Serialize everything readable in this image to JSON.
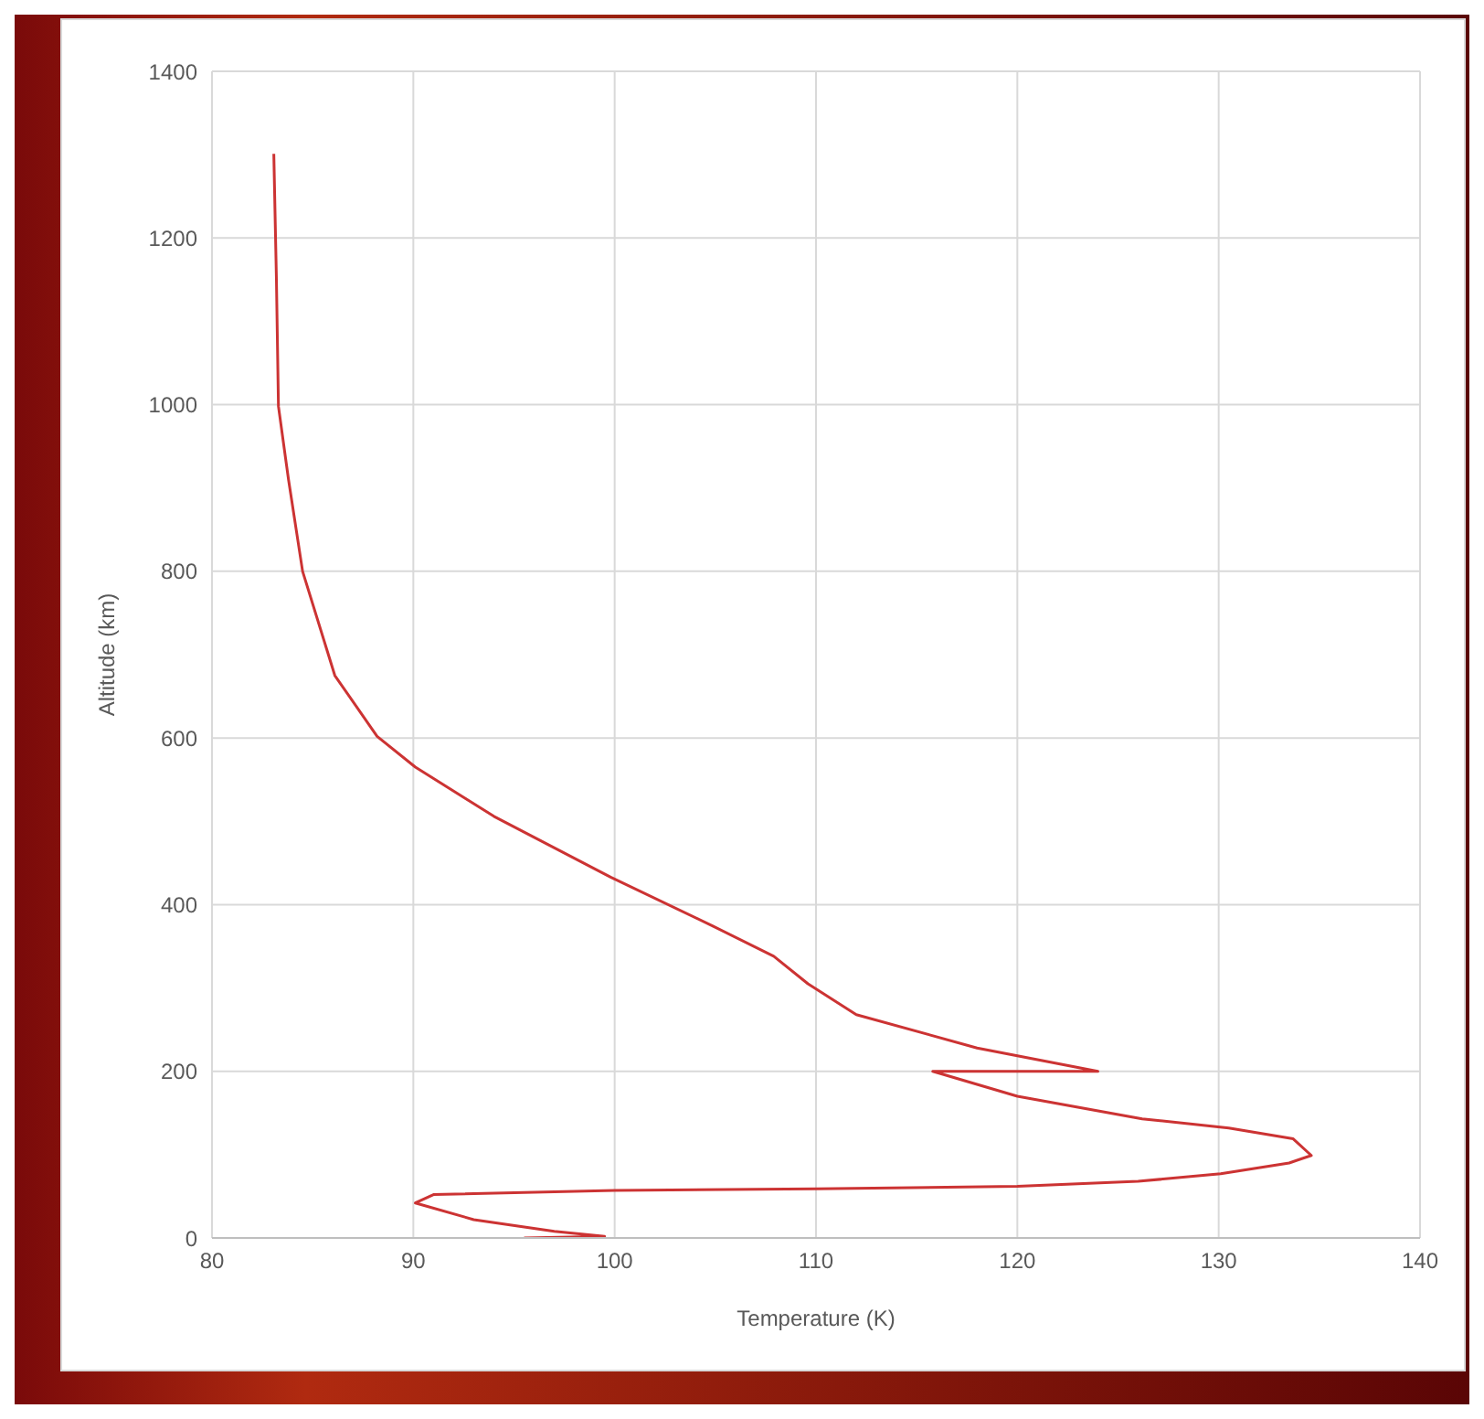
{
  "chart_data": {
    "type": "line",
    "xlabel": "Temperature (K)",
    "ylabel": "Altitude (km)",
    "xlim": [
      80,
      140
    ],
    "xticks": [
      80,
      90,
      100,
      110,
      120,
      130,
      140
    ],
    "ylim": [
      0,
      1400
    ],
    "yticks": [
      0,
      200,
      400,
      600,
      800,
      1000,
      1200,
      1400
    ],
    "grid": true,
    "marker": "none",
    "line_style": "solid",
    "legend": false,
    "series": [
      {
        "color": "#cc3333",
        "x": [
          95.5,
          99.5,
          97,
          93,
          90.1,
          91,
          100,
          110,
          120,
          126,
          130.1,
          133.5,
          134.6,
          133.7,
          130.5,
          126.2,
          120,
          115.8,
          124,
          118,
          112,
          109.6,
          107.9,
          104.9,
          99.8,
          94,
          90.1,
          88.2,
          86.1,
          84.5,
          83.8,
          83.3,
          83.2,
          83.07
        ],
        "values": [
          0,
          2,
          8,
          22,
          42,
          52,
          57,
          59,
          62,
          68,
          77,
          90,
          99,
          119,
          132,
          143,
          170,
          200,
          200,
          228,
          268,
          305,
          338,
          374,
          433,
          506,
          565,
          602,
          675,
          800,
          910,
          998,
          1150,
          1301
        ]
      }
    ]
  }
}
